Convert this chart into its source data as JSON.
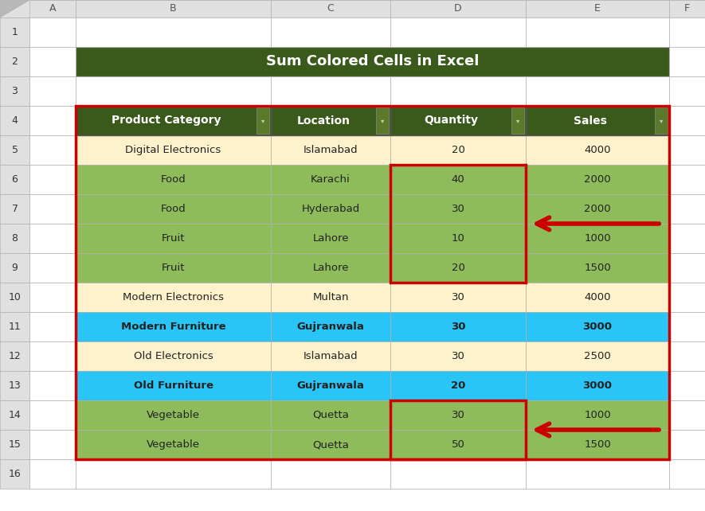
{
  "title": "Sum Colored Cells in Excel",
  "title_bg": "#3a5a1c",
  "title_text_color": "#ffffff",
  "headers": [
    "Product Category",
    "Location",
    "Quantity",
    "Sales"
  ],
  "header_bg": "#3a5a1c",
  "header_text_color": "#ffffff",
  "rows": [
    {
      "product": "Digital Electronics",
      "location": "Islamabad",
      "quantity": "20",
      "sales": "4000",
      "row_color": "#fdf2cc",
      "qty_highlight": false,
      "arrow": false
    },
    {
      "product": "Food",
      "location": "Karachi",
      "quantity": "40",
      "sales": "2000",
      "row_color": "#8fbc5a",
      "qty_highlight": true,
      "arrow": false
    },
    {
      "product": "Food",
      "location": "Hyderabad",
      "quantity": "30",
      "sales": "2000",
      "row_color": "#8fbc5a",
      "qty_highlight": true,
      "arrow": true
    },
    {
      "product": "Fruit",
      "location": "Lahore",
      "quantity": "10",
      "sales": "1000",
      "row_color": "#8fbc5a",
      "qty_highlight": true,
      "arrow": false
    },
    {
      "product": "Fruit",
      "location": "Lahore",
      "quantity": "20",
      "sales": "1500",
      "row_color": "#8fbc5a",
      "qty_highlight": true,
      "arrow": false
    },
    {
      "product": "Modern Electronics",
      "location": "Multan",
      "quantity": "30",
      "sales": "4000",
      "row_color": "#fdf2cc",
      "qty_highlight": false,
      "arrow": false
    },
    {
      "product": "Modern Furniture",
      "location": "Gujranwala",
      "quantity": "30",
      "sales": "3000",
      "row_color": "#29c5f6",
      "qty_highlight": false,
      "arrow": false
    },
    {
      "product": "Old Electronics",
      "location": "Islamabad",
      "quantity": "30",
      "sales": "2500",
      "row_color": "#fdf2cc",
      "qty_highlight": false,
      "arrow": false
    },
    {
      "product": "Old Furniture",
      "location": "Gujranwala",
      "quantity": "20",
      "sales": "3000",
      "row_color": "#29c5f6",
      "qty_highlight": false,
      "arrow": false
    },
    {
      "product": "Vegetable",
      "location": "Quetta",
      "quantity": "30",
      "sales": "1000",
      "row_color": "#8fbc5a",
      "qty_highlight": true,
      "arrow": true
    },
    {
      "product": "Vegetable",
      "location": "Quetta",
      "quantity": "50",
      "sales": "1500",
      "row_color": "#8fbc5a",
      "qty_highlight": true,
      "arrow": false
    }
  ],
  "col_header_bg": "#e0e0e0",
  "row_header_bg": "#e0e0e0",
  "sheet_bg": "#ffffff",
  "outer_bg": "#ffffff",
  "grid_color": "#b0b0b0",
  "red_color": "#cc0000",
  "arrow_color": "#cc0000",
  "blue_text_color": "#222222",
  "normal_text_color": "#222222"
}
